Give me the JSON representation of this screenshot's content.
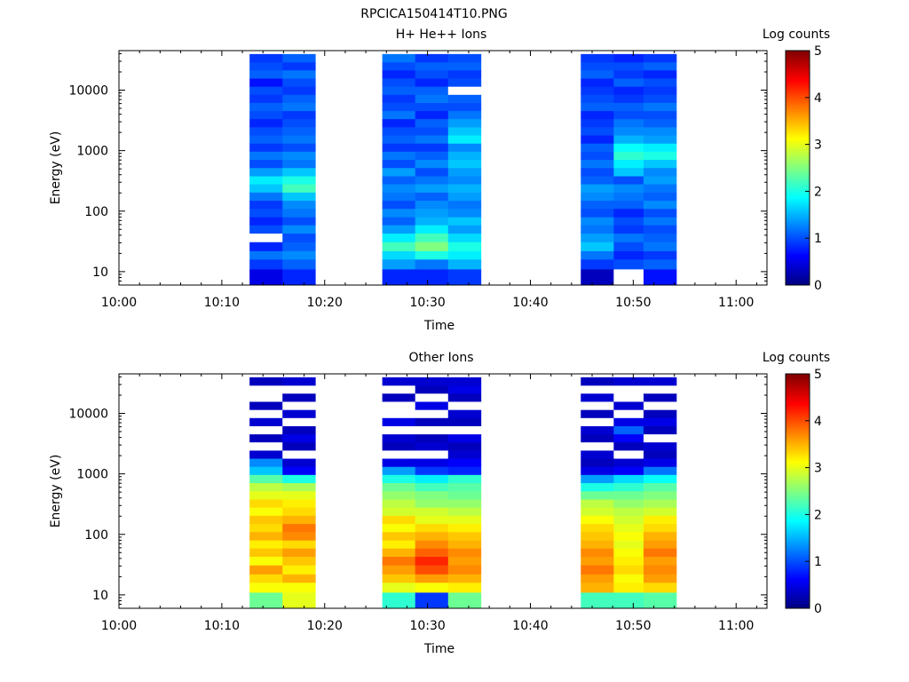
{
  "figure_title": "RPCICA150414T10.PNG",
  "colormap": [
    "#000080",
    "#0000ff",
    "#0080ff",
    "#00ffff",
    "#80ff80",
    "#ffff00",
    "#ff8000",
    "#ff0000",
    "#800000"
  ],
  "empty_color": "#ffffff",
  "chart_data": [
    {
      "type": "heatmap",
      "title": "H+ He++ Ions",
      "xlabel": "Time",
      "ylabel": "Energy (eV)",
      "colorbar_label": "Log counts",
      "x_ticks": [
        "10:00",
        "10:10",
        "10:20",
        "10:30",
        "10:40",
        "10:50",
        "11:00"
      ],
      "x_range": [
        "10:00",
        "11:03"
      ],
      "y_scale": "log",
      "y_ticks": [
        10,
        100,
        1000,
        10000
      ],
      "y_tick_labels": [
        "10",
        "100",
        "1000",
        "10000"
      ],
      "y_range": [
        6,
        45000
      ],
      "color_range": [
        0,
        5
      ],
      "colorbar_ticks": [
        "0",
        "1",
        "2",
        "3",
        "4",
        "5"
      ],
      "energy_bin_edges": [
        6,
        11,
        16,
        22,
        31,
        43,
        59,
        80,
        110,
        150,
        205,
        280,
        380,
        520,
        710,
        970,
        1320,
        1800,
        2450,
        3350,
        4550,
        6200,
        8450,
        11500,
        15700,
        21400,
        29000,
        39500
      ],
      "sweeps": [
        {
          "start": "10:12.7",
          "end": "10:15.9",
          "log_counts": [
            0.5,
            0.9,
            1.2,
            0.8,
            null,
            1.0,
            0.8,
            1.0,
            0.9,
            1.2,
            1.6,
            1.8,
            1.4,
            1.0,
            1.2,
            0.9,
            1.1,
            1.0,
            0.8,
            1.0,
            1.1,
            0.9,
            1.0,
            0.7,
            1.1,
            1.0,
            0.9
          ]
        },
        {
          "start": "10:15.9",
          "end": "10:19.1",
          "log_counts": [
            0.8,
            1.1,
            1.3,
            1.1,
            1.0,
            1.3,
            1.0,
            1.2,
            1.3,
            1.6,
            2.2,
            2.0,
            1.6,
            1.2,
            1.3,
            1.0,
            1.2,
            1.1,
            1.0,
            0.9,
            1.2,
            1.1,
            0.9,
            1.0,
            1.2,
            0.9,
            1.1
          ]
        },
        {
          "start": "10:25.6",
          "end": "10:28.8",
          "log_counts": [
            0.8,
            1.4,
            1.7,
            2.2,
            1.8,
            1.4,
            1.1,
            1.3,
            1.0,
            1.2,
            1.3,
            1.1,
            1.4,
            1.0,
            1.2,
            0.9,
            1.1,
            1.0,
            0.8,
            1.2,
            1.0,
            0.9,
            1.1,
            1.0,
            0.8,
            1.0,
            1.2
          ]
        },
        {
          "start": "10:28.8",
          "end": "10:32.0",
          "log_counts": [
            0.8,
            1.2,
            2.0,
            2.5,
            2.2,
            1.8,
            1.5,
            1.4,
            1.3,
            1.1,
            1.4,
            1.2,
            1.0,
            1.3,
            1.1,
            0.9,
            1.2,
            1.0,
            1.1,
            0.8,
            1.0,
            1.2,
            1.1,
            0.8,
            1.0,
            1.1,
            0.9
          ]
        },
        {
          "start": "10:32.0",
          "end": "10:35.2",
          "log_counts": [
            0.9,
            1.5,
            1.8,
            2.0,
            1.7,
            1.4,
            1.6,
            1.3,
            1.2,
            1.4,
            1.5,
            1.3,
            1.4,
            1.6,
            1.5,
            1.3,
            1.8,
            1.6,
            1.4,
            1.2,
            1.0,
            1.1,
            null,
            1.0,
            0.9,
            1.1,
            1.0
          ]
        },
        {
          "start": "10:44.9",
          "end": "10:48.1",
          "log_counts": [
            0.3,
            0.9,
            1.2,
            1.6,
            1.4,
            1.2,
            1.3,
            1.0,
            1.1,
            1.3,
            1.4,
            1.1,
            1.0,
            1.2,
            1.0,
            1.1,
            0.8,
            1.0,
            0.9,
            0.8,
            1.1,
            1.0,
            0.9,
            0.8,
            1.1,
            1.0,
            0.9
          ]
        },
        {
          "start": "10:48.1",
          "end": "10:51.0",
          "log_counts": [
            null,
            1.0,
            0.8,
            1.0,
            1.2,
            0.9,
            1.0,
            0.8,
            1.1,
            1.2,
            1.3,
            1.0,
            1.6,
            1.8,
            2.1,
            1.9,
            1.5,
            1.3,
            1.2,
            1.0,
            1.1,
            0.9,
            0.8,
            1.1,
            0.9,
            1.0,
            0.8
          ]
        },
        {
          "start": "10:51.0",
          "end": "10:54.2",
          "log_counts": [
            0.7,
            1.1,
            0.9,
            1.2,
            1.1,
            1.0,
            1.2,
            1.0,
            1.3,
            1.1,
            1.2,
            1.4,
            1.3,
            1.6,
            2.0,
            1.8,
            1.4,
            1.3,
            1.1,
            1.0,
            1.2,
            1.0,
            0.9,
            1.0,
            0.8,
            1.1,
            0.9
          ]
        }
      ]
    },
    {
      "type": "heatmap",
      "title": "Other Ions",
      "xlabel": "Time",
      "ylabel": "Energy (eV)",
      "colorbar_label": "Log counts",
      "x_ticks": [
        "10:00",
        "10:10",
        "10:20",
        "10:30",
        "10:40",
        "10:50",
        "11:00"
      ],
      "x_range": [
        "10:00",
        "11:03"
      ],
      "y_scale": "log",
      "y_ticks": [
        10,
        100,
        1000,
        10000
      ],
      "y_tick_labels": [
        "10",
        "100",
        "1000",
        "10000"
      ],
      "y_range": [
        6,
        45000
      ],
      "color_range": [
        0,
        5
      ],
      "colorbar_ticks": [
        "0",
        "1",
        "2",
        "3",
        "4",
        "5"
      ],
      "energy_bin_edges": [
        6,
        11,
        16,
        22,
        31,
        43,
        59,
        80,
        110,
        150,
        205,
        280,
        380,
        520,
        710,
        970,
        1320,
        1800,
        2450,
        3350,
        4550,
        6200,
        8450,
        11500,
        15700,
        21400,
        29000,
        39500
      ],
      "sweeps": [
        {
          "start": "10:12.7",
          "end": "10:15.9",
          "log_counts": [
            2.4,
            3.1,
            3.3,
            3.6,
            3.1,
            3.4,
            3.2,
            3.5,
            3.3,
            3.4,
            3.1,
            3.3,
            3.0,
            2.8,
            2.3,
            1.6,
            1.3,
            0.4,
            null,
            0.3,
            null,
            0.4,
            null,
            0.3,
            null,
            null,
            0.3
          ]
        },
        {
          "start": "10:15.9",
          "end": "10:19.1",
          "log_counts": [
            3.0,
            3.1,
            3.5,
            3.2,
            3.4,
            3.6,
            3.3,
            3.7,
            3.8,
            3.5,
            3.3,
            3.2,
            3.0,
            2.7,
            2.0,
            0.6,
            0.4,
            null,
            0.3,
            0.5,
            0.3,
            null,
            0.4,
            null,
            0.3,
            null,
            0.4
          ]
        },
        {
          "start": "10:25.6",
          "end": "10:28.8",
          "log_counts": [
            2.1,
            3.0,
            3.4,
            3.6,
            3.8,
            3.5,
            3.2,
            3.4,
            3.1,
            3.3,
            2.9,
            2.8,
            2.6,
            2.4,
            2.0,
            1.4,
            0.5,
            null,
            0.3,
            0.4,
            null,
            0.5,
            null,
            null,
            0.3,
            null,
            0.4
          ]
        },
        {
          "start": "10:28.8",
          "end": "10:32.0",
          "log_counts": [
            0.9,
            3.1,
            3.6,
            4.0,
            4.2,
            3.9,
            3.7,
            3.5,
            3.3,
            3.0,
            2.9,
            2.6,
            2.5,
            2.2,
            1.8,
            0.9,
            0.5,
            null,
            0.4,
            0.3,
            null,
            0.3,
            null,
            0.5,
            null,
            0.3,
            0.4
          ]
        },
        {
          "start": "10:32.0",
          "end": "10:35.2",
          "log_counts": [
            2.4,
            3.2,
            3.5,
            3.7,
            3.6,
            3.7,
            3.5,
            3.4,
            3.2,
            3.0,
            2.8,
            2.6,
            2.4,
            2.3,
            2.1,
            0.8,
            0.6,
            0.4,
            0.3,
            0.5,
            null,
            0.3,
            0.4,
            null,
            0.3,
            0.5,
            0.4
          ]
        },
        {
          "start": "10:44.9",
          "end": "10:48.1",
          "log_counts": [
            2.2,
            3.5,
            3.6,
            3.8,
            3.6,
            3.7,
            3.5,
            3.4,
            3.3,
            3.1,
            2.9,
            2.8,
            2.4,
            2.0,
            1.4,
            0.5,
            0.3,
            0.4,
            null,
            0.3,
            0.4,
            null,
            0.3,
            null,
            0.4,
            null,
            0.3
          ]
        },
        {
          "start": "10:48.1",
          "end": "10:51.0",
          "log_counts": [
            2.2,
            3.2,
            3.1,
            3.3,
            3.2,
            3.1,
            3.0,
            3.1,
            3.0,
            2.9,
            2.8,
            2.6,
            2.4,
            2.1,
            1.7,
            0.6,
            0.4,
            null,
            0.3,
            0.6,
            1.1,
            0.5,
            null,
            0.4,
            null,
            null,
            0.4
          ]
        },
        {
          "start": "10:51.0",
          "end": "10:54.2",
          "log_counts": [
            2.3,
            3.3,
            3.6,
            3.7,
            3.6,
            3.8,
            3.6,
            3.5,
            3.3,
            3.2,
            2.9,
            2.7,
            2.5,
            2.3,
            1.9,
            1.2,
            0.5,
            0.3,
            0.4,
            null,
            0.3,
            0.5,
            0.3,
            null,
            0.3,
            null,
            0.4
          ]
        }
      ]
    }
  ]
}
